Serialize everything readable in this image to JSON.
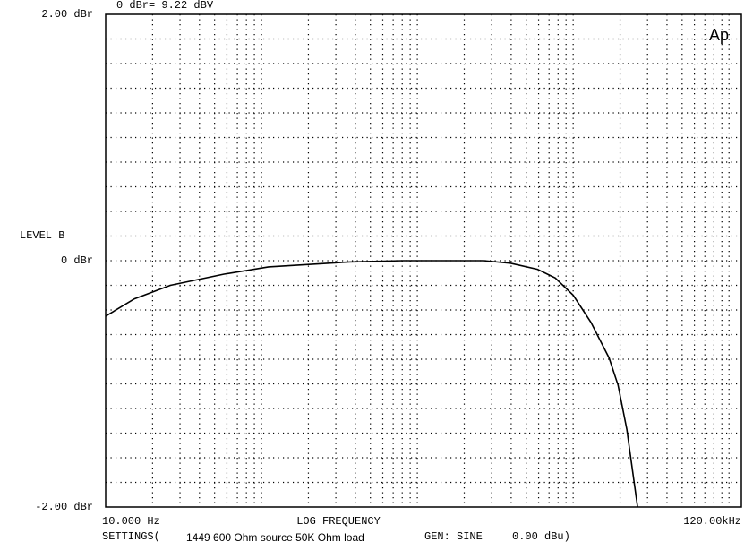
{
  "chart_data": {
    "type": "line",
    "logx": true,
    "header": "0 dBr= 9.22 dBV",
    "logo": "Ap",
    "ylabel": "LEVEL  B",
    "xlabel": "LOG FREQUENCY",
    "footer": {
      "settings": "SETTINGS(",
      "description": "1449 600 Ohm source 50K Ohm load",
      "gen": "GEN: SINE",
      "level": "0.00 dBu)"
    },
    "xlim": [
      10,
      120000
    ],
    "ylim": [
      -2,
      2
    ],
    "xticks": [
      {
        "value": 10,
        "label": "10.000 Hz"
      },
      {
        "value": 120000,
        "label": "120.00kHz"
      }
    ],
    "yticks": [
      {
        "value": 2,
        "label": "2.00 dBr"
      },
      {
        "value": 0,
        "label": "0 dBr"
      },
      {
        "value": -2,
        "label": "-2.00 dBr"
      }
    ],
    "xgrid": [
      20,
      30,
      40,
      50,
      60,
      70,
      80,
      90,
      100,
      200,
      300,
      400,
      500,
      600,
      700,
      800,
      900,
      1000,
      2000,
      3000,
      4000,
      5000,
      6000,
      7000,
      8000,
      9000,
      10000,
      20000,
      30000,
      40000,
      50000,
      60000,
      70000,
      80000,
      90000,
      100000
    ],
    "ygrid": [
      -1.8,
      -1.6,
      -1.4,
      -1.2,
      -1,
      -0.8,
      -0.6,
      -0.4,
      -0.2,
      0,
      0.2,
      0.4,
      0.6,
      0.8,
      1,
      1.2,
      1.4,
      1.6,
      1.8
    ],
    "grid": true,
    "color": "#000000",
    "x": [
      10,
      15.3,
      26,
      57,
      111,
      366,
      809,
      2660,
      3960,
      5900,
      7680,
      10000,
      13000,
      17000,
      19400,
      22100,
      25900
    ],
    "values": [
      -0.45,
      -0.31,
      -0.2,
      -0.11,
      -0.05,
      -0.01,
      0,
      0,
      -0.02,
      -0.07,
      -0.14,
      -0.28,
      -0.5,
      -0.79,
      -1.01,
      -1.37,
      -2.0
    ]
  }
}
